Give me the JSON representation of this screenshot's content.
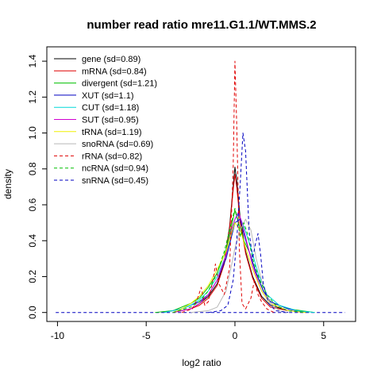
{
  "chart_data": {
    "type": "line",
    "title": "number read ratio mre11.G1.1/WT.MMS.2",
    "xlabel": "log2 ratio",
    "ylabel": "density",
    "xlim": [
      -10.6,
      6.8
    ],
    "ylim": [
      -0.05,
      1.48
    ],
    "xticks": [
      -10,
      -5,
      0,
      5
    ],
    "yticks": [
      0.0,
      0.2,
      0.4,
      0.6,
      0.8,
      1.0,
      1.2,
      1.4
    ],
    "ytick_labels": [
      "0.0",
      "0.2",
      "0.4",
      "0.6",
      "0.8",
      "1.0",
      "1.2",
      "1.4"
    ],
    "grid": false,
    "legend_position": "top-left",
    "series": [
      {
        "name": "gene (sd=0.89)",
        "color": "#000000",
        "dash": "solid",
        "points": [
          [
            -3.5,
            0
          ],
          [
            -2.5,
            0.02
          ],
          [
            -2,
            0.05
          ],
          [
            -1.5,
            0.09
          ],
          [
            -1,
            0.16
          ],
          [
            -0.6,
            0.28
          ],
          [
            -0.3,
            0.48
          ],
          [
            -0.1,
            0.7
          ],
          [
            0,
            0.81
          ],
          [
            0.1,
            0.74
          ],
          [
            0.3,
            0.52
          ],
          [
            0.6,
            0.34
          ],
          [
            1,
            0.2
          ],
          [
            1.5,
            0.09
          ],
          [
            2,
            0.04
          ],
          [
            3,
            0.01
          ],
          [
            4,
            0
          ]
        ]
      },
      {
        "name": "mRNA (sd=0.84)",
        "color": "#df0000",
        "dash": "solid",
        "points": [
          [
            -3.5,
            0
          ],
          [
            -2.5,
            0.02
          ],
          [
            -2,
            0.04
          ],
          [
            -1.5,
            0.08
          ],
          [
            -1,
            0.15
          ],
          [
            -0.6,
            0.27
          ],
          [
            -0.3,
            0.47
          ],
          [
            -0.1,
            0.68
          ],
          [
            0,
            0.77
          ],
          [
            0.1,
            0.7
          ],
          [
            0.3,
            0.5
          ],
          [
            0.6,
            0.33
          ],
          [
            1,
            0.19
          ],
          [
            1.5,
            0.08
          ],
          [
            2,
            0.03
          ],
          [
            3,
            0.01
          ],
          [
            4,
            0
          ]
        ]
      },
      {
        "name": "divergent (sd=1.21)",
        "color": "#00c000",
        "dash": "solid",
        "points": [
          [
            -4.5,
            0
          ],
          [
            -3.5,
            0.01
          ],
          [
            -2.5,
            0.05
          ],
          [
            -2,
            0.08
          ],
          [
            -1.5,
            0.14
          ],
          [
            -1,
            0.22
          ],
          [
            -0.5,
            0.35
          ],
          [
            -0.2,
            0.48
          ],
          [
            0,
            0.57
          ],
          [
            0.2,
            0.5
          ],
          [
            0.5,
            0.4
          ],
          [
            0.8,
            0.34
          ],
          [
            1.2,
            0.22
          ],
          [
            1.6,
            0.12
          ],
          [
            2,
            0.06
          ],
          [
            3,
            0.02
          ],
          [
            4.5,
            0
          ]
        ]
      },
      {
        "name": "XUT (sd=1.1)",
        "color": "#0000c0",
        "dash": "solid",
        "points": [
          [
            -4,
            0
          ],
          [
            -3,
            0.02
          ],
          [
            -2.5,
            0.04
          ],
          [
            -2,
            0.06
          ],
          [
            -1.5,
            0.1
          ],
          [
            -1,
            0.18
          ],
          [
            -0.5,
            0.3
          ],
          [
            -0.2,
            0.42
          ],
          [
            0,
            0.5
          ],
          [
            0.3,
            0.52
          ],
          [
            0.5,
            0.44
          ],
          [
            0.8,
            0.34
          ],
          [
            1.2,
            0.22
          ],
          [
            1.6,
            0.12
          ],
          [
            2,
            0.06
          ],
          [
            3,
            0.02
          ],
          [
            4,
            0
          ]
        ]
      },
      {
        "name": "CUT (sd=1.18)",
        "color": "#00d8d8",
        "dash": "solid",
        "points": [
          [
            -4,
            0
          ],
          [
            -3,
            0.02
          ],
          [
            -2.5,
            0.04
          ],
          [
            -2,
            0.07
          ],
          [
            -1.5,
            0.12
          ],
          [
            -1,
            0.2
          ],
          [
            -0.5,
            0.32
          ],
          [
            -0.2,
            0.44
          ],
          [
            0,
            0.52
          ],
          [
            0.2,
            0.55
          ],
          [
            0.5,
            0.48
          ],
          [
            0.9,
            0.36
          ],
          [
            1.3,
            0.22
          ],
          [
            1.8,
            0.1
          ],
          [
            2.5,
            0.04
          ],
          [
            3.5,
            0.01
          ],
          [
            4.5,
            0
          ]
        ]
      },
      {
        "name": "SUT (sd=0.95)",
        "color": "#d000d0",
        "dash": "solid",
        "points": [
          [
            -3.5,
            0
          ],
          [
            -2.5,
            0.02
          ],
          [
            -2,
            0.05
          ],
          [
            -1.5,
            0.1
          ],
          [
            -1,
            0.18
          ],
          [
            -0.5,
            0.32
          ],
          [
            -0.2,
            0.46
          ],
          [
            0,
            0.52
          ],
          [
            0.2,
            0.56
          ],
          [
            0.4,
            0.5
          ],
          [
            0.7,
            0.38
          ],
          [
            1,
            0.26
          ],
          [
            1.5,
            0.12
          ],
          [
            2,
            0.05
          ],
          [
            3,
            0.01
          ],
          [
            4,
            0
          ]
        ]
      },
      {
        "name": "tRNA (sd=1.19)",
        "color": "#f0f000",
        "dash": "solid",
        "points": [
          [
            -3.5,
            0
          ],
          [
            -3,
            0.02
          ],
          [
            -2.5,
            0.05
          ],
          [
            -2,
            0.09
          ],
          [
            -1.5,
            0.15
          ],
          [
            -1,
            0.24
          ],
          [
            -0.5,
            0.34
          ],
          [
            -0.2,
            0.44
          ],
          [
            0,
            0.5
          ],
          [
            0.3,
            0.46
          ],
          [
            0.6,
            0.36
          ],
          [
            1,
            0.24
          ],
          [
            1.5,
            0.12
          ],
          [
            2,
            0.05
          ],
          [
            3,
            0.01
          ],
          [
            4,
            0
          ]
        ]
      },
      {
        "name": "snoRNA (sd=0.69)",
        "color": "#b8b8b8",
        "dash": "solid",
        "points": [
          [
            -2.5,
            0
          ],
          [
            -1.5,
            0.01
          ],
          [
            -1,
            0.03
          ],
          [
            -0.5,
            0.12
          ],
          [
            -0.2,
            0.26
          ],
          [
            0,
            0.36
          ],
          [
            0.3,
            0.46
          ],
          [
            0.6,
            0.52
          ],
          [
            0.9,
            0.46
          ],
          [
            1.2,
            0.3
          ],
          [
            1.6,
            0.14
          ],
          [
            2,
            0.05
          ],
          [
            2.5,
            0.01
          ],
          [
            3,
            0
          ]
        ]
      },
      {
        "name": "rRNA (sd=0.82)",
        "color": "#e00000",
        "dash": "dashed",
        "points": [
          [
            -3,
            0
          ],
          [
            -2.4,
            0.02
          ],
          [
            -2.1,
            0.08
          ],
          [
            -1.9,
            0.14
          ],
          [
            -1.7,
            0.04
          ],
          [
            -1.5,
            0.06
          ],
          [
            -1.2,
            0.2
          ],
          [
            -1.1,
            0.27
          ],
          [
            -0.9,
            0.16
          ],
          [
            -0.6,
            0.1
          ],
          [
            -0.3,
            0.25
          ],
          [
            -0.1,
            0.8
          ],
          [
            0,
            1.4
          ],
          [
            0.1,
            1.05
          ],
          [
            0.25,
            0.35
          ],
          [
            0.4,
            0.05
          ],
          [
            0.6,
            0.02
          ],
          [
            0.9,
            0.08
          ],
          [
            1.1,
            0.18
          ],
          [
            1.3,
            0.1
          ],
          [
            1.5,
            0.06
          ],
          [
            1.8,
            0.02
          ],
          [
            2.2,
            0
          ]
        ]
      },
      {
        "name": "ncRNA (sd=0.94)",
        "color": "#00c000",
        "dash": "dashed",
        "points": [
          [
            -3.5,
            0
          ],
          [
            -2.5,
            0.03
          ],
          [
            -2,
            0.06
          ],
          [
            -1.5,
            0.12
          ],
          [
            -1,
            0.22
          ],
          [
            -0.6,
            0.34
          ],
          [
            -0.3,
            0.46
          ],
          [
            -0.1,
            0.54
          ],
          [
            0,
            0.58
          ],
          [
            0.15,
            0.52
          ],
          [
            0.3,
            0.42
          ],
          [
            0.5,
            0.5
          ],
          [
            0.7,
            0.44
          ],
          [
            1,
            0.3
          ],
          [
            1.4,
            0.18
          ],
          [
            1.8,
            0.1
          ],
          [
            2.3,
            0.04
          ],
          [
            3,
            0.01
          ],
          [
            4,
            0
          ]
        ]
      },
      {
        "name": "snRNA (sd=0.45)",
        "color": "#0000c0",
        "dash": "dashed",
        "points": [
          [
            -1.5,
            0
          ],
          [
            -0.8,
            0.01
          ],
          [
            -0.4,
            0.04
          ],
          [
            -0.1,
            0.18
          ],
          [
            0.1,
            0.4
          ],
          [
            0.3,
            0.72
          ],
          [
            0.45,
            1.0
          ],
          [
            0.6,
            0.9
          ],
          [
            0.8,
            0.45
          ],
          [
            1,
            0.3
          ],
          [
            1.15,
            0.38
          ],
          [
            1.3,
            0.44
          ],
          [
            1.45,
            0.32
          ],
          [
            1.6,
            0.16
          ],
          [
            1.9,
            0.05
          ],
          [
            2.3,
            0.01
          ],
          [
            3,
            0
          ]
        ]
      }
    ],
    "baseline": {
      "y": 0,
      "x_start": -10.1,
      "x_end": 6.2,
      "color": "#0000c0"
    }
  }
}
